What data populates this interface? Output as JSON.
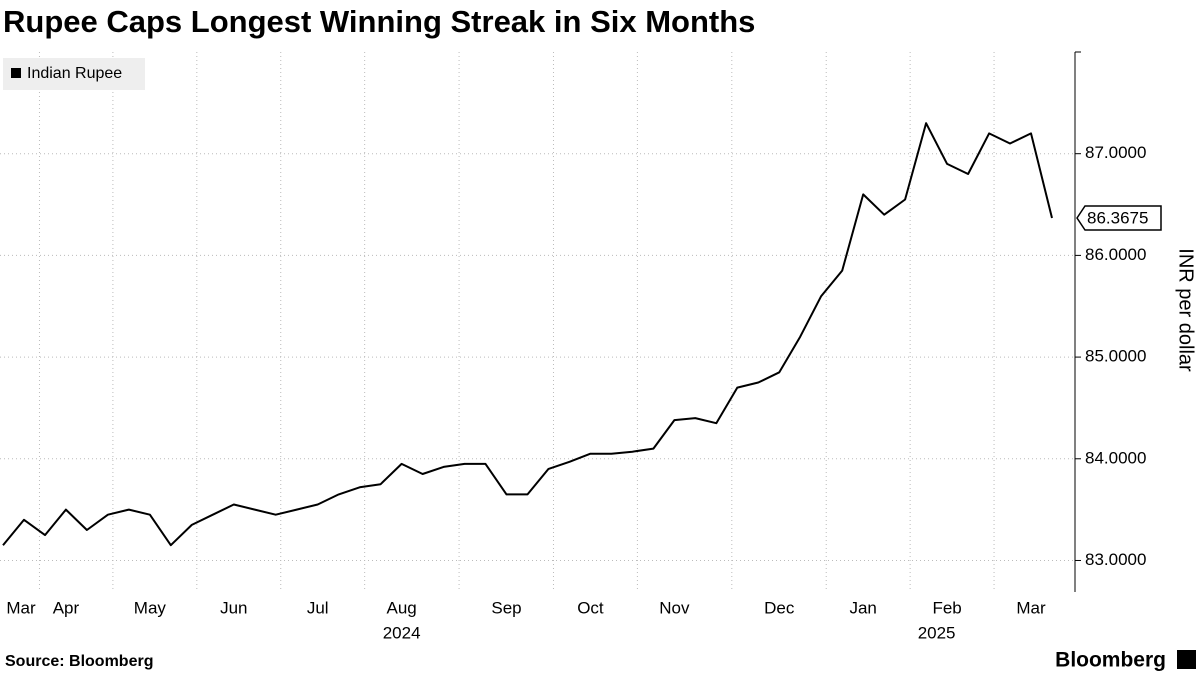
{
  "chart_data": {
    "type": "line",
    "title": "Rupee Caps Longest Winning Streak in Six Months",
    "y_axis_label": "INR per dollar",
    "source": "Source: Bloomberg",
    "brand": "Bloomberg",
    "categories": [
      "Mar",
      null,
      null,
      "Apr",
      null,
      null,
      null,
      "May",
      null,
      null,
      null,
      "Jun",
      null,
      null,
      null,
      "Jul",
      null,
      null,
      null,
      "Aug",
      null,
      null,
      null,
      null,
      "Sep",
      null,
      null,
      null,
      "Oct",
      null,
      null,
      null,
      "Nov",
      null,
      null,
      null,
      null,
      "Dec",
      null,
      null,
      null,
      "Jan",
      null,
      null,
      null,
      "Feb",
      null,
      null,
      null,
      "Mar",
      null
    ],
    "x_groups": [
      {
        "label": "2024",
        "start": 0
      },
      {
        "label": "2025",
        "start": 39
      }
    ],
    "series": [
      {
        "name": "Indian Rupee",
        "color": "#000000",
        "values": [
          83.15,
          83.4,
          83.25,
          83.5,
          83.3,
          83.45,
          83.5,
          83.45,
          83.15,
          83.35,
          83.45,
          83.55,
          83.5,
          83.45,
          83.5,
          83.55,
          83.65,
          83.72,
          83.75,
          83.95,
          83.85,
          83.92,
          83.95,
          83.95,
          83.65,
          83.65,
          83.9,
          83.97,
          84.05,
          84.05,
          84.07,
          84.1,
          84.38,
          84.4,
          84.35,
          84.7,
          84.75,
          84.85,
          85.2,
          85.6,
          85.85,
          86.6,
          86.4,
          86.55,
          87.3,
          86.9,
          86.8,
          87.2,
          87.1,
          87.2,
          86.3675
        ]
      }
    ],
    "ylim": [
      82.69,
      88
    ],
    "yticks": [
      {
        "value": 83,
        "label": "83.0000"
      },
      {
        "value": 84,
        "label": "84.0000"
      },
      {
        "value": 85,
        "label": "85.0000"
      },
      {
        "value": 86,
        "label": "86.0000"
      },
      {
        "value": 87,
        "label": "87.0000"
      }
    ],
    "grid": true,
    "legend": "top-left"
  }
}
